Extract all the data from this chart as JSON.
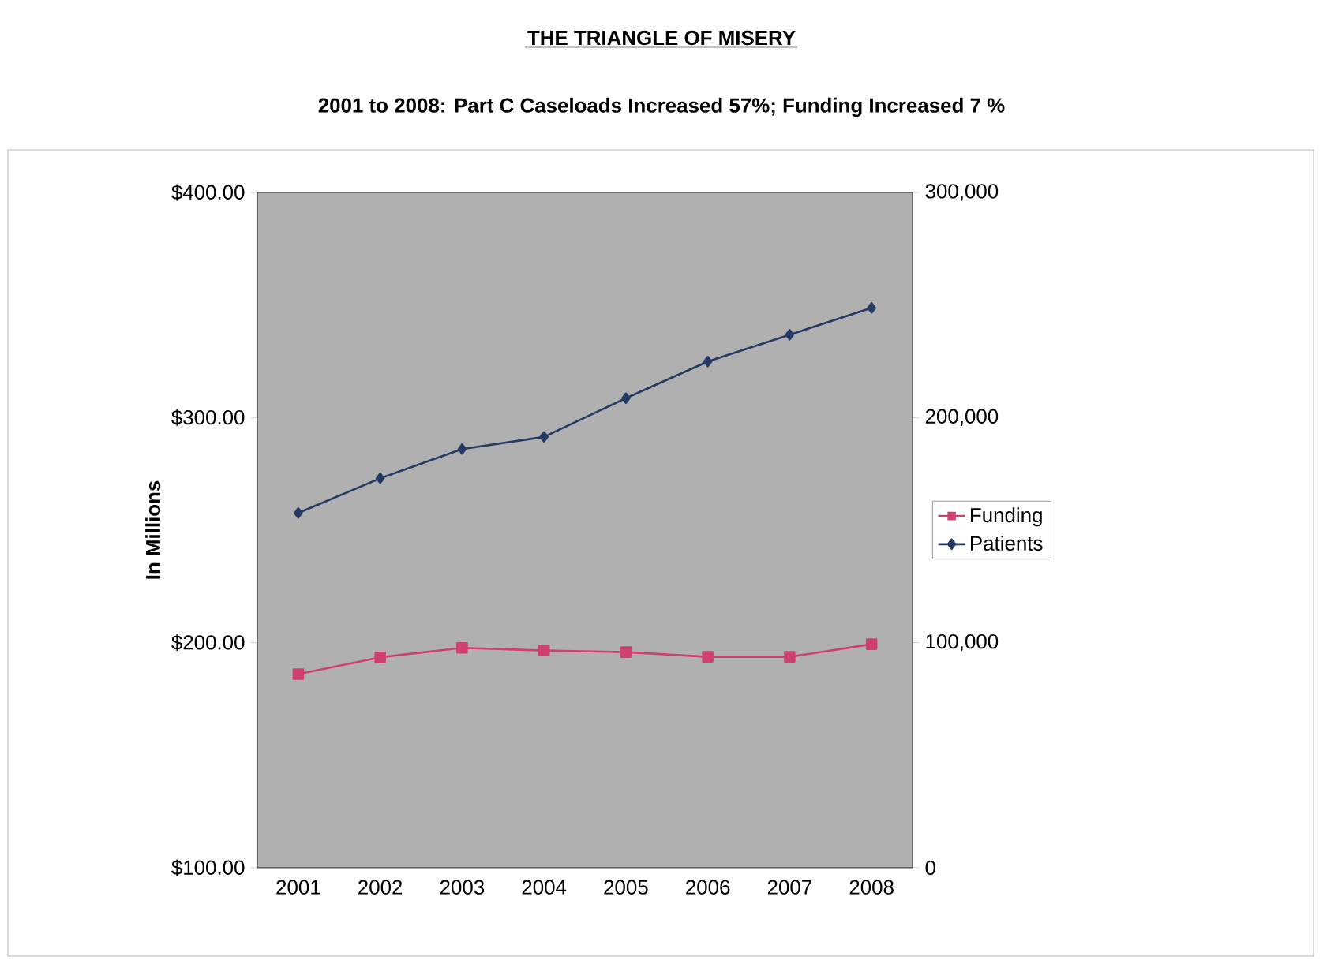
{
  "chart_data": {
    "type": "line",
    "title": "THE TRIANGLE OF MISERY",
    "subtitle": "2001 to 2008:   Part C Caseloads Increased 57%; Funding Increased 7 %",
    "ylabel": "In Millions",
    "categories": [
      "2001",
      "2002",
      "2003",
      "2004",
      "2005",
      "2006",
      "2007",
      "2008"
    ],
    "series": [
      {
        "name": "Funding",
        "color": "#d0406e",
        "marker": "square",
        "values": [
          186.0,
          193.5,
          197.7,
          196.5,
          195.8,
          193.7,
          193.7,
          199.3
        ]
      },
      {
        "name": "Patients",
        "color": "#253a63",
        "marker": "diamond",
        "axis": "y2",
        "values": [
          157600,
          173000,
          186000,
          191400,
          208600,
          224900,
          236800,
          248700
        ]
      }
    ],
    "ylim": [
      100,
      400
    ],
    "yticks": [
      {
        "value": 100,
        "label": "$100.00"
      },
      {
        "value": 200,
        "label": "$200.00"
      },
      {
        "value": 300,
        "label": "$300.00"
      },
      {
        "value": 400,
        "label": "$400.00"
      }
    ],
    "y2lim": [
      0,
      300000
    ],
    "y2ticks": [
      0,
      {
        "value": 100000,
        "label": "100,000"
      },
      {
        "value": 200000,
        "label": "200,000"
      },
      {
        "value": 300000,
        "label": "300,000"
      }
    ],
    "grid": false,
    "legend": "right",
    "line_style": "solid"
  }
}
